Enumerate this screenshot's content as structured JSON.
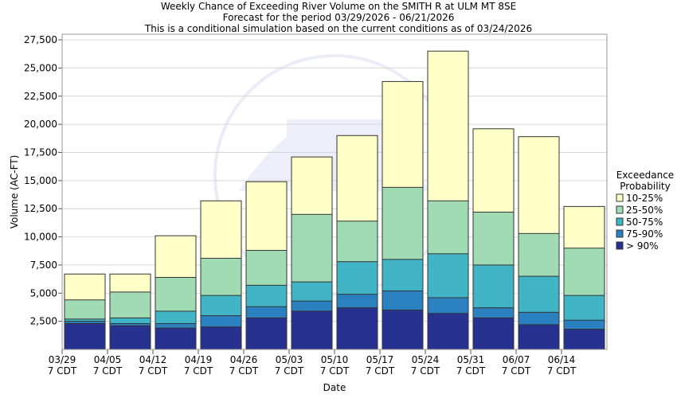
{
  "chart_data": {
    "type": "bar",
    "stacked": true,
    "title": "Weekly Chance of Exceeding River Volume on the SMITH R at ULM MT 8SE",
    "subtitle": "Forecast for the period 03/29/2026 - 06/21/2026",
    "subtitle2": "This is a conditional simulation based on the current conditions as of 03/24/2026",
    "xlabel": "Date",
    "ylabel": "Volume (AC-FT)",
    "ylim": [
      0,
      28000
    ],
    "y_ticks": [
      "2,500",
      "5,000",
      "7,500",
      "10,000",
      "12,500",
      "15,000",
      "17,500",
      "20,000",
      "22,500",
      "25,000",
      "27,500"
    ],
    "x_ticks": [
      {
        "line1": "03/29",
        "line2": "7 CDT"
      },
      {
        "line1": "04/05",
        "line2": "7 CDT"
      },
      {
        "line1": "04/12",
        "line2": "7 CDT"
      },
      {
        "line1": "04/19",
        "line2": "7 CDT"
      },
      {
        "line1": "04/26",
        "line2": "7 CDT"
      },
      {
        "line1": "05/03",
        "line2": "7 CDT"
      },
      {
        "line1": "05/10",
        "line2": "7 CDT"
      },
      {
        "line1": "05/17",
        "line2": "7 CDT"
      },
      {
        "line1": "05/24",
        "line2": "7 CDT"
      },
      {
        "line1": "05/31",
        "line2": "7 CDT"
      },
      {
        "line1": "06/07",
        "line2": "7 CDT"
      },
      {
        "line1": "06/14",
        "line2": "7 CDT"
      }
    ],
    "legend_title_line1": "Exceedance",
    "legend_title_line2": "Probability",
    "legend_placement": "right",
    "series": [
      {
        "name": "> 90%",
        "color": "#27318f",
        "tops": [
          2300,
          2100,
          1900,
          2000,
          2800,
          3400,
          3700,
          3500,
          3200,
          2800,
          2200,
          1800
        ]
      },
      {
        "name": "75-90%",
        "color": "#2b80bf",
        "tops": [
          2500,
          2300,
          2300,
          3000,
          3800,
          4300,
          4900,
          5200,
          4600,
          3700,
          3300,
          2600
        ]
      },
      {
        "name": "50-75%",
        "color": "#41b5c6",
        "tops": [
          2700,
          2800,
          3400,
          4800,
          5700,
          6000,
          7800,
          8000,
          8500,
          7500,
          6500,
          4800
        ]
      },
      {
        "name": "25-50%",
        "color": "#a0dbb4",
        "tops": [
          4400,
          5100,
          6400,
          8100,
          8800,
          12000,
          11400,
          14400,
          13200,
          12200,
          10300,
          9000
        ]
      },
      {
        "name": "10-25%",
        "color": "#ffffc8",
        "tops": [
          6700,
          6700,
          10100,
          13200,
          14900,
          17100,
          19000,
          23800,
          26500,
          19600,
          18900,
          12700
        ]
      }
    ]
  }
}
